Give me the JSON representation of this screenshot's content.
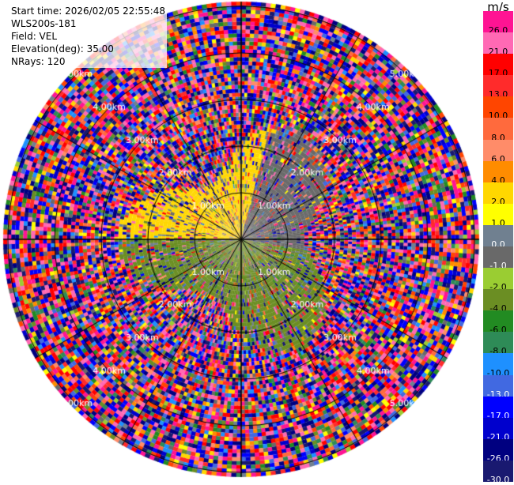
{
  "info": {
    "start_time": "Start time: 2026/02/05 22:55:48",
    "instrument": "WLS200s-181",
    "field": "Field: VEL",
    "elevation": "Elevation(deg): 35.00",
    "nrays": "NRays: 120"
  },
  "colorbar": {
    "unit": "m/s",
    "ticks": [
      "26.0",
      "21.0",
      "17.0",
      "13.0",
      "10.0",
      "8.0",
      "6.0",
      "4.0",
      "2.0",
      "1.0",
      "0.0",
      "-1.0",
      "-2.0",
      "-4.0",
      "-6.0",
      "-8.0",
      "-10.0",
      "-13.0",
      "-17.0",
      "-21.0",
      "-26.0",
      "-30.0"
    ],
    "colors": [
      "#ff1493",
      "#ff69b4",
      "#ff0000",
      "#ff2b2b",
      "#ff4500",
      "#ff6a3d",
      "#ff8c69",
      "#ff8c00",
      "#ffd700",
      "#ffff00",
      "#708090",
      "#696969",
      "#9acd32",
      "#6b8e23",
      "#228b22",
      "#2e8b57",
      "#1e90ff",
      "#4169e1",
      "#0000ff",
      "#0000cd",
      "#000080",
      "#191970"
    ]
  },
  "chart_data": {
    "type": "heatmap",
    "projection": "polar PPI",
    "field": "VEL",
    "unit": "m/s",
    "elevation_deg": 35.0,
    "n_rays": 120,
    "range_rings_km": [
      1.0,
      2.0,
      3.0,
      4.0,
      5.0
    ],
    "ring_labels": [
      "1.00km",
      "2.00km",
      "3.00km",
      "4.00km",
      "5.00km"
    ],
    "max_range_km": 5.1,
    "value_range": [
      -30.0,
      30.0
    ],
    "level_boundaries": [
      -30.0,
      -26.0,
      -21.0,
      -17.0,
      -13.0,
      -10.0,
      -8.0,
      -6.0,
      -4.0,
      -2.0,
      -1.0,
      0.0,
      1.0,
      2.0,
      4.0,
      6.0,
      8.0,
      10.0,
      13.0,
      17.0,
      21.0,
      26.0,
      30.0
    ],
    "near_field_pattern": {
      "north_west_sector_m_s": [
        2.0,
        4.0
      ],
      "north_east_sector_m_s": [
        -1.0,
        0.0
      ],
      "south_sector_m_s": [
        -4.0,
        -2.0
      ],
      "coherent_range_km": 2.2
    },
    "far_field": "random noise across full velocity range"
  }
}
